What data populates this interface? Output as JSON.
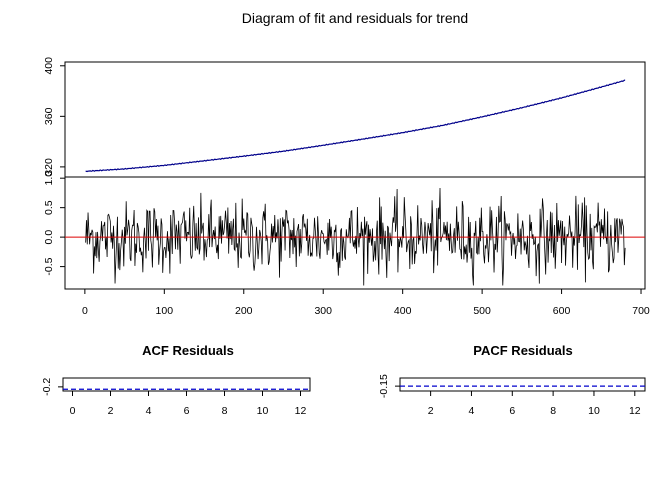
{
  "title": "Diagram of fit and residuals for trend",
  "colors": {
    "trend": "#00008B",
    "zero_line": "#DD0000",
    "residuals": "#000000",
    "ci": "#0000CC"
  },
  "chart_data": [
    {
      "type": "line",
      "panel": "trend",
      "title": "",
      "x_range": [
        1,
        680
      ],
      "xlim": [
        -25,
        705
      ],
      "ylim": [
        312,
        403
      ],
      "yticks": [
        320,
        360,
        400
      ],
      "ytick_labels": [
        "320",
        "360",
        "400"
      ],
      "series": [
        {
          "points": [
            [
              1,
              316.5
            ],
            [
              50,
              318.4
            ],
            [
              100,
              321.2
            ],
            [
              150,
              324.8
            ],
            [
              200,
              328.5
            ],
            [
              250,
              332.4
            ],
            [
              300,
              337.1
            ],
            [
              350,
              342.0
            ],
            [
              400,
              347.1
            ],
            [
              450,
              352.8
            ],
            [
              500,
              359.6
            ],
            [
              550,
              366.8
            ],
            [
              600,
              374.6
            ],
            [
              650,
              383.2
            ],
            [
              680,
              388.5
            ]
          ]
        }
      ]
    },
    {
      "type": "line",
      "panel": "residuals",
      "title": "",
      "x_range": [
        1,
        680
      ],
      "xlim": [
        -25,
        705
      ],
      "ylim": [
        -0.88,
        1.02
      ],
      "yticks": [
        -0.5,
        0.0,
        0.5,
        1.0
      ],
      "ytick_labels": [
        "-0.5",
        "0.0",
        "0.5",
        "1.0"
      ],
      "xticks": [
        0,
        100,
        200,
        300,
        400,
        500,
        600,
        700
      ],
      "xtick_labels": [
        "0",
        "100",
        "200",
        "300",
        "400",
        "500",
        "600",
        "700"
      ],
      "horizontal_line": 0,
      "amplitude_sd": 0.3
    },
    {
      "type": "bar",
      "panel": "acf",
      "title": "ACF Residuals",
      "xlim": [
        -0.5,
        12.5
      ],
      "ylim": [
        -0.235,
        -0.125
      ],
      "xticks": [
        0,
        2,
        4,
        6,
        8,
        10,
        12
      ],
      "xtick_labels": [
        "0",
        "2",
        "4",
        "6",
        "8",
        "10",
        "12"
      ],
      "yticks": [
        -0.2
      ],
      "ytick_labels": [
        "-0.2"
      ],
      "ci_lines": [
        -0.22
      ]
    },
    {
      "type": "bar",
      "panel": "pacf",
      "title": "PACF Residuals",
      "xlim": [
        0.5,
        12.5
      ],
      "ylim": [
        -0.18,
        -0.1
      ],
      "xticks": [
        2,
        4,
        6,
        8,
        10,
        12
      ],
      "xtick_labels": [
        "2",
        "4",
        "6",
        "8",
        "10",
        "12"
      ],
      "yticks": [
        -0.15
      ],
      "ytick_labels": [
        "-0.15"
      ],
      "ci_lines": [
        -0.15
      ]
    }
  ]
}
